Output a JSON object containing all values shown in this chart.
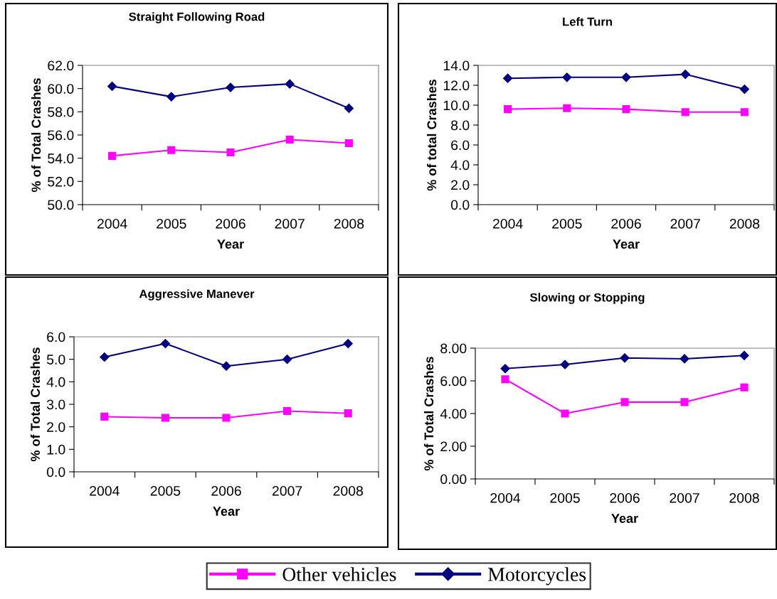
{
  "chart_data": [
    {
      "type": "line",
      "title": "Straight Following Road",
      "xlabel": "Year",
      "ylabel": "% of Total Crashes",
      "categories": [
        "2004",
        "2005",
        "2006",
        "2007",
        "2008"
      ],
      "ylim": [
        50,
        62
      ],
      "yticks": [
        {
          "value": 50,
          "label": "50.0"
        },
        {
          "value": 52,
          "label": "52.0"
        },
        {
          "value": 54,
          "label": "54.0"
        },
        {
          "value": 56,
          "label": "56.0"
        },
        {
          "value": 58,
          "label": "58.0"
        },
        {
          "value": 60,
          "label": "60.0"
        },
        {
          "value": 62,
          "label": "62.0"
        }
      ],
      "grid": false,
      "legend": "bottom",
      "line_style": "solid",
      "series": [
        {
          "name": "Other vehicles",
          "color": "#ff00ff",
          "marker": "square",
          "values": [
            54.2,
            54.7,
            54.5,
            55.6,
            55.3
          ]
        },
        {
          "name": "Motorcycles",
          "color": "#000080",
          "marker": "diamond",
          "values": [
            60.2,
            59.3,
            60.1,
            60.4,
            58.3
          ]
        }
      ]
    },
    {
      "type": "line",
      "title": "Left Turn",
      "xlabel": "Year",
      "ylabel": "% of total Crashes",
      "categories": [
        "2004",
        "2005",
        "2006",
        "2007",
        "2008"
      ],
      "ylim": [
        0,
        14
      ],
      "yticks": [
        {
          "value": 0,
          "label": "0.0"
        },
        {
          "value": 2,
          "label": "2.0"
        },
        {
          "value": 4,
          "label": "4.0"
        },
        {
          "value": 6,
          "label": "6.0"
        },
        {
          "value": 8,
          "label": "8.0"
        },
        {
          "value": 10,
          "label": "10.0"
        },
        {
          "value": 12,
          "label": "12.0"
        },
        {
          "value": 14,
          "label": "14.0"
        }
      ],
      "grid": false,
      "line_style": "solid",
      "series": [
        {
          "color": "#ff00ff",
          "marker": "square",
          "values": [
            9.6,
            9.7,
            9.6,
            9.3,
            9.3
          ]
        },
        {
          "color": "#000080",
          "marker": "diamond",
          "values": [
            12.7,
            12.8,
            12.8,
            13.1,
            11.6
          ]
        }
      ]
    },
    {
      "type": "line",
      "title": "Aggressive Manever",
      "xlabel": "Year",
      "ylabel": "% of Total Crashes",
      "categories": [
        "2004",
        "2005",
        "2006",
        "2007",
        "2008"
      ],
      "ylim": [
        0,
        6
      ],
      "yticks": [
        {
          "value": 0,
          "label": "0.0"
        },
        {
          "value": 1,
          "label": "1.0"
        },
        {
          "value": 2,
          "label": "2.0"
        },
        {
          "value": 3,
          "label": "3.0"
        },
        {
          "value": 4,
          "label": "4.0"
        },
        {
          "value": 5,
          "label": "5.0"
        },
        {
          "value": 6,
          "label": "6.0"
        }
      ],
      "grid": false,
      "line_style": "solid",
      "series": [
        {
          "color": "#ff00ff",
          "marker": "square",
          "values": [
            2.45,
            2.4,
            2.4,
            2.7,
            2.6
          ]
        },
        {
          "color": "#000080",
          "marker": "diamond",
          "values": [
            5.1,
            5.7,
            4.7,
            5.0,
            5.7
          ]
        }
      ]
    },
    {
      "type": "line",
      "title": "Slowing or Stopping",
      "xlabel": "Year",
      "ylabel": "% of Total Crashes",
      "categories": [
        "2004",
        "2005",
        "2006",
        "2007",
        "2008"
      ],
      "ylim": [
        0,
        8
      ],
      "yticks": [
        {
          "value": 0,
          "label": "0.00"
        },
        {
          "value": 2,
          "label": "2.00"
        },
        {
          "value": 4,
          "label": "4.00"
        },
        {
          "value": 6,
          "label": "6.00"
        },
        {
          "value": 8,
          "label": "8.00"
        }
      ],
      "grid": false,
      "line_style": "solid",
      "series": [
        {
          "color": "#ff00ff",
          "marker": "square",
          "values": [
            6.1,
            4.0,
            4.7,
            4.7,
            5.6
          ]
        },
        {
          "color": "#000080",
          "marker": "diamond",
          "values": [
            6.75,
            7.0,
            7.4,
            7.35,
            7.55
          ]
        }
      ]
    }
  ]
}
